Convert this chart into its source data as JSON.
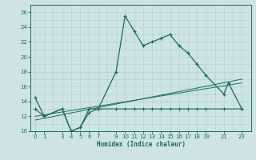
{
  "xlabel": "Humidex (Indice chaleur)",
  "bg_color": "#cde4e3",
  "grid_color": "#aacfcd",
  "line_color": "#1a6b5a",
  "xlim": [
    -0.5,
    24
  ],
  "ylim": [
    10,
    27
  ],
  "xticks": [
    0,
    1,
    3,
    4,
    5,
    6,
    7,
    9,
    10,
    11,
    12,
    13,
    14,
    15,
    16,
    17,
    18,
    19,
    21,
    23
  ],
  "yticks": [
    10,
    12,
    14,
    16,
    18,
    20,
    22,
    24,
    26
  ],
  "main_line_x": [
    0,
    1,
    3,
    4,
    5,
    6,
    7,
    9,
    10,
    11,
    12,
    13,
    14,
    15,
    16,
    17,
    18,
    19,
    21,
    21.5,
    23
  ],
  "main_line_y": [
    14.5,
    12,
    13,
    10,
    10.5,
    13,
    13,
    18,
    25.5,
    23.5,
    21.5,
    22,
    22.5,
    23,
    21.5,
    20.5,
    19,
    17.5,
    15,
    16.5,
    13
  ],
  "lower_line_x": [
    0,
    1,
    3,
    4,
    5,
    6,
    7,
    9,
    10,
    11,
    12,
    13,
    14,
    15,
    16,
    17,
    18,
    19,
    21,
    23
  ],
  "lower_line_y": [
    13,
    12,
    13,
    10,
    10.5,
    12.5,
    13,
    13,
    13,
    13,
    13,
    13,
    13,
    13,
    13,
    13,
    13,
    13,
    13,
    13
  ],
  "trend_line_x": [
    0,
    23
  ],
  "trend_line_y": [
    11.5,
    17.0
  ],
  "trend_line2_x": [
    0,
    23
  ],
  "trend_line2_y": [
    12.0,
    16.5
  ]
}
